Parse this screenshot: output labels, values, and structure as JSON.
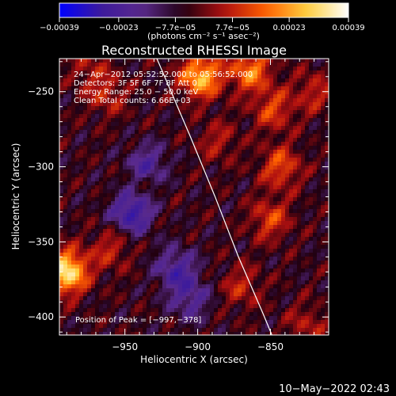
{
  "chart_data": {
    "type": "heatmap",
    "title": "Reconstructed RHESSI Image",
    "xlabel": "Heliocentric X (arcsec)",
    "ylabel": "Heliocentric Y (arcsec)",
    "xlim": [
      -995,
      -810
    ],
    "ylim": [
      -412,
      -228
    ],
    "x_ticks": [
      -950,
      -900,
      -850
    ],
    "y_ticks": [
      -250,
      -300,
      -350,
      -400
    ],
    "x_tick_labels": [
      "−950",
      "−900",
      "−850"
    ],
    "y_tick_labels": [
      "−250",
      "−300",
      "−350",
      "−400"
    ],
    "colorbar": {
      "min": -0.00039,
      "max": 0.00039,
      "ticks": [
        -0.00039,
        -0.00023,
        -7.7e-05,
        7.7e-05,
        0.00023,
        0.00039
      ],
      "tick_labels": [
        "−0.00039",
        "−0.00023",
        "−7.7e−05",
        "7.7e−05",
        "0.00023",
        "0.00039"
      ],
      "label": "(photons cm⁻² s⁻¹ asec⁻²)",
      "colors": [
        "#0000ff",
        "#3c1a9c",
        "#5a2a8c",
        "#200010",
        "#b01010",
        "#ff6000",
        "#ffd040",
        "#ffffff"
      ]
    },
    "annotations": [
      "24−Apr−2012 05:52:52.000 to 05:56:52.000",
      "Detectors: 3F 5F 6F 7F 8F  Att 0",
      "Energy Range: 25.0 − 50.0 keV",
      "Clean     Total counts: 6.66E+03"
    ],
    "peak_label": "Position of Peak = [−997,−378]",
    "limb": [
      [
        -928,
        -228
      ],
      [
        -905,
        -280
      ],
      [
        -888,
        -320
      ],
      [
        -872,
        -360
      ],
      [
        -855,
        -398
      ],
      [
        -849,
        -412
      ]
    ],
    "sources": [
      {
        "x": -898,
        "y": -240,
        "value": 0.00032
      },
      {
        "x": -848,
        "y": -262,
        "value": 0.00016
      },
      {
        "x": -864,
        "y": -236,
        "value": 0.00024
      },
      {
        "x": -990,
        "y": -370,
        "value": 0.00039
      },
      {
        "x": -960,
        "y": -355,
        "value": 0.00012
      },
      {
        "x": -843,
        "y": -300,
        "value": 0.00018
      },
      {
        "x": -850,
        "y": -335,
        "value": 0.00016
      },
      {
        "x": -870,
        "y": -380,
        "value": 0.00012
      },
      {
        "x": -886,
        "y": -283,
        "value": 0.0001
      },
      {
        "x": -962,
        "y": -252,
        "value": 0.00012
      },
      {
        "x": -975,
        "y": -235,
        "value": 9e-05
      },
      {
        "x": -938,
        "y": -310,
        "value": 8e-05
      },
      {
        "x": -825,
        "y": -405,
        "value": 0.0001
      },
      {
        "x": -820,
        "y": -250,
        "value": 0.00012
      }
    ],
    "dips": [
      {
        "x": -945,
        "y": -330,
        "value": -0.00025
      },
      {
        "x": -915,
        "y": -368,
        "value": -0.00018
      },
      {
        "x": -935,
        "y": -300,
        "value": -0.0002
      },
      {
        "x": -905,
        "y": -388,
        "value": -0.00015
      }
    ],
    "grid": false
  },
  "footer": {
    "timestamp": "10−May−2022 02:43"
  }
}
